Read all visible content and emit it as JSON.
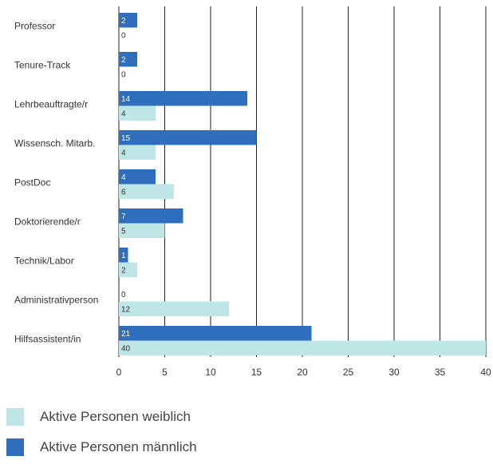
{
  "chart_data": {
    "type": "bar",
    "orientation": "horizontal",
    "categories": [
      "Professor",
      "Tenure-Track",
      "Lehrbeauftragte/r",
      "Wissensch. Mitarb.",
      "PostDoc",
      "Doktorierende/r",
      "Technik/Labor",
      "Administrativperson",
      "Hilfsassistent/in"
    ],
    "series": [
      {
        "name": "Aktive Personen männlich",
        "color": "#2f6ebc",
        "label_color": "#ffffff",
        "values": [
          2,
          2,
          14,
          15,
          4,
          7,
          1,
          0,
          21
        ]
      },
      {
        "name": "Aktive Personen weiblich",
        "color": "#bfe6e6",
        "label_color": "#333333",
        "values": [
          0,
          0,
          4,
          4,
          6,
          5,
          2,
          12,
          40
        ]
      }
    ],
    "xlim": [
      0,
      40
    ],
    "xticks": [
      0,
      5,
      10,
      15,
      20,
      25,
      30,
      35,
      40
    ],
    "grid": "vertical",
    "legend_position": "bottom-left",
    "legend_order": [
      "Aktive Personen weiblich",
      "Aktive Personen männlich"
    ]
  }
}
